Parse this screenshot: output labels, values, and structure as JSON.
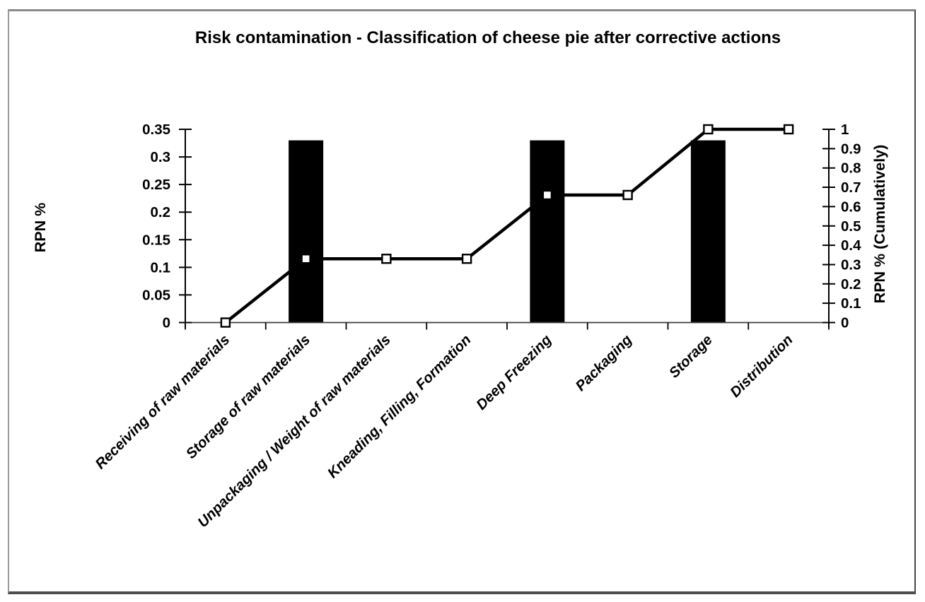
{
  "chart_data": {
    "type": "bar",
    "subtype": "pareto-combo-bar-line",
    "title": "Risk contamination  - Classification of  cheese pie after corrective actions",
    "categories": [
      "Receiving of raw materials",
      "Storage of raw materials",
      "Unpackaging / Weight of raw materials",
      "Kneading, Filling, Formation",
      "Deep Freezing",
      "Packaging",
      "Storage",
      "Distribution"
    ],
    "series": [
      {
        "name": "RPN %",
        "type": "bar",
        "axis": "left",
        "values": [
          0,
          0.33,
          0,
          0,
          0.33,
          0,
          0.33,
          0
        ]
      },
      {
        "name": "RPN % (Cumulatively)",
        "type": "line",
        "axis": "right",
        "marker": "open-square",
        "values": [
          0,
          0.33,
          0.33,
          0.33,
          0.66,
          0.66,
          1,
          1
        ]
      }
    ],
    "left_axis": {
      "title": "RPN %",
      "min": 0,
      "max": 0.35,
      "step": 0.05,
      "tick_labels": [
        "0",
        "0.05",
        "0.1",
        "0.15",
        "0.2",
        "0.25",
        "0.3",
        "0.35"
      ]
    },
    "right_axis": {
      "title": "RPN % (Cumulatively)",
      "min": 0,
      "max": 1,
      "step": 0.1,
      "tick_labels": [
        "0",
        "0.1",
        "0.2",
        "0.3",
        "0.4",
        "0.5",
        "0.6",
        "0.7",
        "0.8",
        "0.9",
        "1"
      ]
    },
    "grid": false,
    "legend": "none",
    "colors": {
      "bar": "#000000",
      "line": "#000000",
      "marker_fill": "#ffffff",
      "marker_stroke": "#000000",
      "axis": "#000000",
      "baseline": "#3c3c3c",
      "background": "#ffffff",
      "frame_border": "#8a8a8a"
    }
  }
}
